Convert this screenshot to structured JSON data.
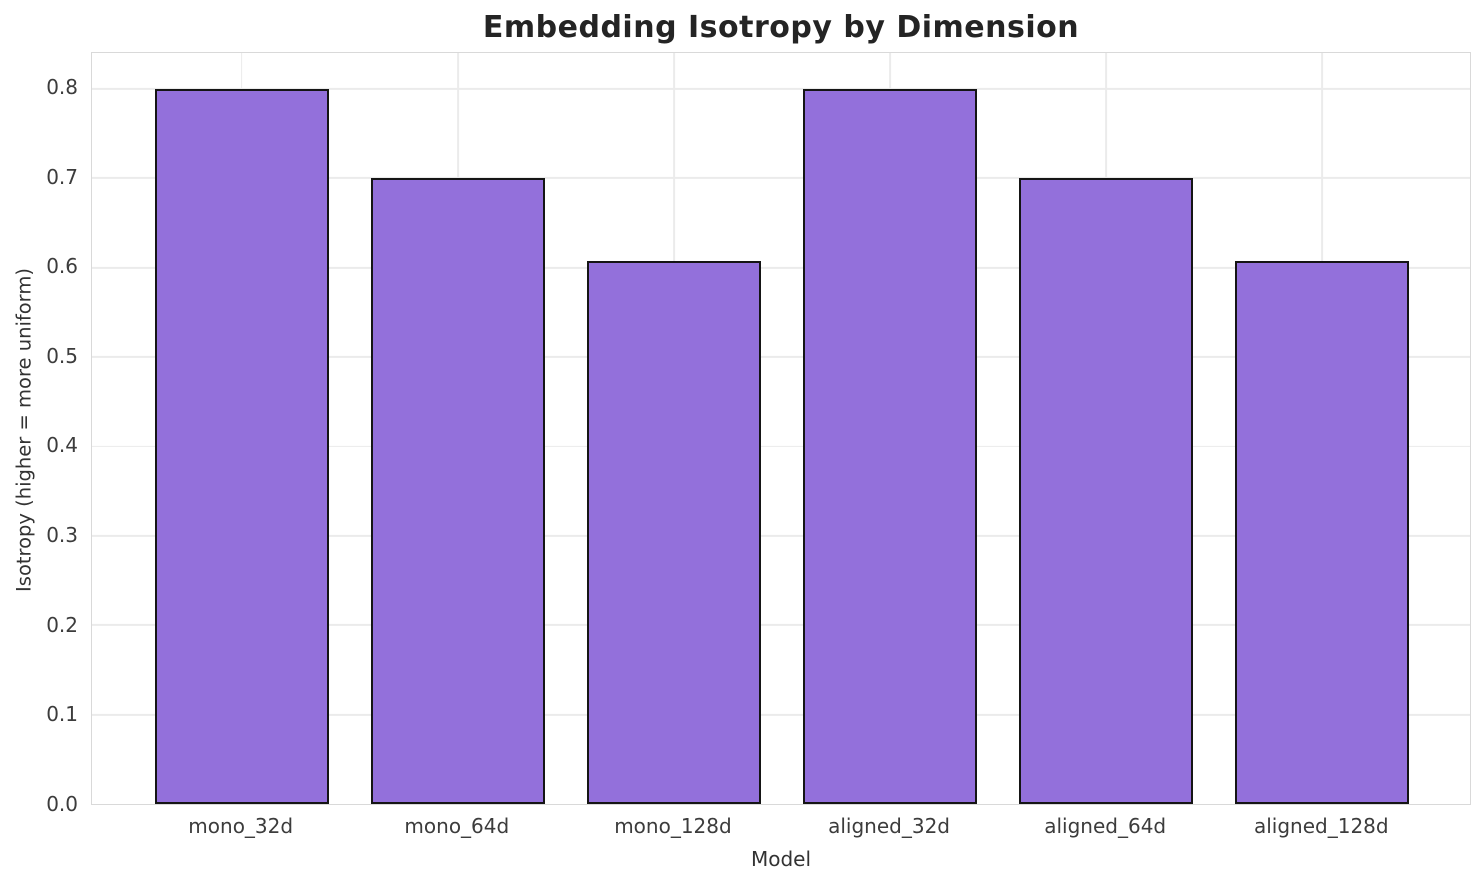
{
  "chart_data": {
    "type": "bar",
    "title": "Embedding Isotropy by Dimension",
    "xlabel": "Model",
    "ylabel": "Isotropy (higher = more uniform)",
    "categories": [
      "mono_32d",
      "mono_64d",
      "mono_128d",
      "aligned_32d",
      "aligned_64d",
      "aligned_128d"
    ],
    "values": [
      0.8,
      0.7,
      0.607,
      0.8,
      0.7,
      0.607
    ],
    "ylim": [
      0,
      0.84
    ],
    "yticks": [
      0.0,
      0.1,
      0.2,
      0.3,
      0.4,
      0.5,
      0.6,
      0.7,
      0.8
    ],
    "ytick_labels": [
      "0.0",
      "0.1",
      "0.2",
      "0.3",
      "0.4",
      "0.5",
      "0.6",
      "0.7",
      "0.8"
    ],
    "grid": true,
    "legend_position": "none",
    "bar_fill_color": "#9370DB",
    "bar_edge_color": "#151515",
    "grid_color": "#ebebeb",
    "plot_border_color": "#d9d9d9",
    "title_color": "#242424",
    "tick_label_color": "#3c3c3c"
  }
}
